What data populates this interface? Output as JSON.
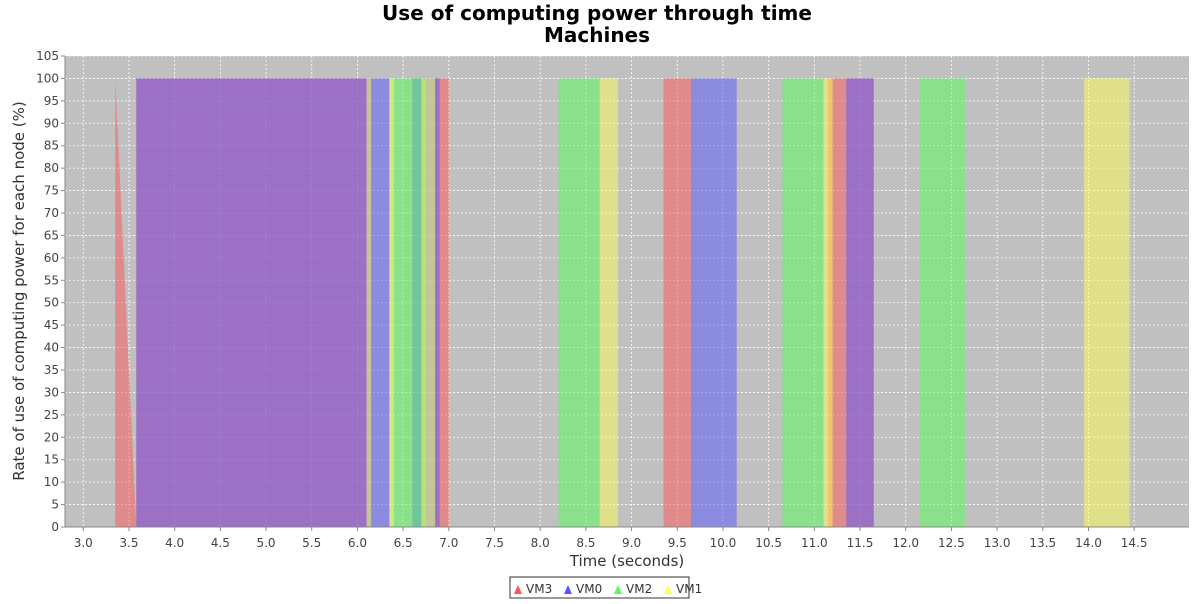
{
  "chart_data": {
    "type": "area",
    "title": "Use of computing power through time",
    "subtitle": "Machines",
    "xlabel": "Time (seconds)",
    "ylabel": "Rate of use of computing power for each node (%)",
    "xlim": [
      2.8,
      15.1
    ],
    "ylim": [
      0,
      105
    ],
    "xticks": [
      "3.0",
      "3.5",
      "4.0",
      "4.5",
      "5.0",
      "5.5",
      "6.0",
      "6.5",
      "7.0",
      "7.5",
      "8.0",
      "8.5",
      "9.0",
      "9.5",
      "10.0",
      "10.5",
      "11.0",
      "11.5",
      "12.0",
      "12.5",
      "13.0",
      "13.5",
      "14.0",
      "14.5"
    ],
    "yticks": [
      "0",
      "5",
      "10",
      "15",
      "20",
      "25",
      "30",
      "35",
      "40",
      "45",
      "50",
      "55",
      "60",
      "65",
      "70",
      "75",
      "80",
      "85",
      "90",
      "95",
      "100",
      "105"
    ],
    "grid": true,
    "legend_position": "bottom",
    "series": [
      {
        "name": "VM3",
        "color": "#ff5555",
        "x": [
          3.35,
          3.35,
          3.58,
          3.58,
          6.1,
          6.1,
          6.85,
          6.85,
          7.0,
          7.0,
          7.2,
          7.2,
          9.35,
          9.35,
          9.65,
          9.65,
          9.85,
          9.85,
          11.15,
          11.15,
          11.65,
          11.65
        ],
        "y": [
          0,
          100,
          0,
          100,
          100,
          0,
          0,
          100,
          100,
          0,
          0,
          0,
          0,
          100,
          100,
          0,
          0,
          0,
          0,
          100,
          100,
          0
        ]
      },
      {
        "name": "VM0",
        "color": "#5555ff",
        "x": [
          3.58,
          3.58,
          6.35,
          6.35,
          6.6,
          6.6,
          6.9,
          6.9,
          7.5,
          7.5,
          9.65,
          9.65,
          10.15,
          10.15,
          11.35,
          11.35,
          11.65,
          11.65
        ],
        "y": [
          0,
          100,
          100,
          0,
          0,
          100,
          100,
          0,
          0,
          0,
          0,
          100,
          100,
          0,
          0,
          100,
          100,
          0
        ]
      },
      {
        "name": "VM2",
        "color": "#55ff55",
        "x": [
          6.38,
          6.38,
          6.75,
          6.75,
          8.2,
          8.2,
          8.65,
          8.65,
          10.65,
          10.65,
          11.1,
          11.1,
          12.15,
          12.15,
          12.65,
          12.65
        ],
        "y": [
          0,
          100,
          100,
          0,
          0,
          100,
          100,
          0,
          0,
          100,
          100,
          0,
          0,
          100,
          100,
          0
        ]
      },
      {
        "name": "VM1",
        "color": "#ffff55",
        "x": [
          6.1,
          6.1,
          6.15,
          6.15,
          6.35,
          6.35,
          6.4,
          6.4,
          6.7,
          6.7,
          6.85,
          6.85,
          8.65,
          8.65,
          8.85,
          8.85,
          11.1,
          11.1,
          11.2,
          11.2,
          13.95,
          13.95,
          14.45,
          14.45
        ],
        "y": [
          0,
          100,
          100,
          0,
          0,
          100,
          100,
          0,
          0,
          100,
          100,
          0,
          0,
          100,
          100,
          0,
          0,
          100,
          100,
          0,
          0,
          100,
          100,
          0
        ]
      }
    ]
  }
}
